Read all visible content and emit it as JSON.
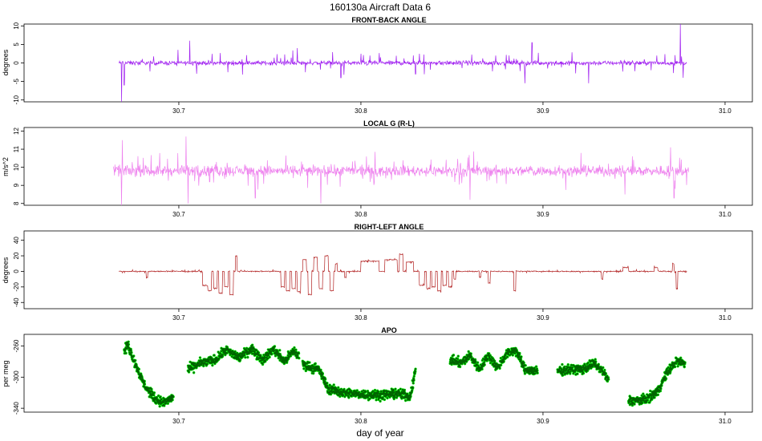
{
  "figure": {
    "title": "160130a   Aircraft Data 6",
    "xlabel": "day of year"
  },
  "colors": {
    "front_back": "#a020f0",
    "local_g": "#ee82ee",
    "right_left": "#b22222",
    "apo_outer": "#00ff00",
    "apo_inner": "#006400"
  },
  "chart_data": [
    {
      "type": "line",
      "title": "FRONT-BACK ANGLE",
      "ylabel": "degrees",
      "xlim": [
        30.615,
        31.015
      ],
      "ylim": [
        -10.5,
        10.5
      ],
      "x_ticks": [
        30.7,
        30.8,
        30.9,
        31.0
      ],
      "x_tick_labels": [
        "30.7",
        "30.8",
        "30.9",
        "31.0"
      ],
      "y_ticks": [
        -10,
        -5,
        0,
        5,
        10
      ],
      "y_tick_labels": [
        "-10",
        "-5",
        "0",
        "5",
        "10"
      ],
      "series": [
        {
          "color": "#a020f0",
          "data_range": [
            30.667,
            30.979
          ],
          "baseline": 0,
          "noise": 0.5,
          "spike_amp": 3,
          "events": [
            {
              "x": 30.6685,
              "value": -10.5
            },
            {
              "x": 30.67,
              "value": -6
            },
            {
              "x": 30.706,
              "value": 6
            },
            {
              "x": 30.727,
              "value": -2.5
            },
            {
              "x": 30.765,
              "value": 4
            },
            {
              "x": 30.789,
              "value": -4
            },
            {
              "x": 30.83,
              "value": -3
            },
            {
              "x": 30.89,
              "value": -5.5
            },
            {
              "x": 30.894,
              "value": 5.5
            },
            {
              "x": 30.918,
              "value": -2.8
            },
            {
              "x": 30.925,
              "value": -5.5
            },
            {
              "x": 30.9755,
              "value": 10.5
            },
            {
              "x": 30.977,
              "value": -4
            }
          ]
        }
      ]
    },
    {
      "type": "line",
      "title": "LOCAL G (R-L)",
      "ylabel": "m/s^2",
      "xlim": [
        30.615,
        31.015
      ],
      "ylim": [
        7.9,
        12.2
      ],
      "x_ticks": [
        30.7,
        30.8,
        30.9,
        31.0
      ],
      "x_tick_labels": [
        "30.7",
        "30.8",
        "30.9",
        "31.0"
      ],
      "y_ticks": [
        8,
        9,
        10,
        11,
        12
      ],
      "y_tick_labels": [
        "8",
        "9",
        "10",
        "11",
        "12"
      ],
      "series": [
        {
          "color": "#ee82ee",
          "data_range": [
            30.664,
            30.98
          ],
          "baseline": 9.8,
          "noise": 0.25,
          "spike_amp": 0.9,
          "events": [
            {
              "x": 30.6685,
              "value": 7.9
            },
            {
              "x": 30.669,
              "value": 11.5
            },
            {
              "x": 30.704,
              "value": 11.7
            },
            {
              "x": 30.705,
              "value": 8.0
            },
            {
              "x": 30.742,
              "value": 8.3
            },
            {
              "x": 30.778,
              "value": 8.0
            },
            {
              "x": 30.86,
              "value": 8.2
            },
            {
              "x": 30.945,
              "value": 8.5
            },
            {
              "x": 30.97,
              "value": 11.1
            },
            {
              "x": 30.972,
              "value": 8.3
            }
          ]
        }
      ]
    },
    {
      "type": "line",
      "title": "RIGHT-LEFT ANGLE",
      "ylabel": "degrees",
      "xlim": [
        30.615,
        31.015
      ],
      "ylim": [
        -48,
        52
      ],
      "x_ticks": [
        30.7,
        30.8,
        30.9,
        31.0
      ],
      "x_tick_labels": [
        "30.7",
        "30.8",
        "30.9",
        "31.0"
      ],
      "y_ticks": [
        -40,
        -20,
        0,
        20,
        40
      ],
      "y_tick_labels": [
        "-40",
        "-20",
        "0",
        "20",
        "40"
      ],
      "series": [
        {
          "color": "#b22222",
          "data_range": [
            30.667,
            30.979
          ],
          "baseline": 0,
          "noise": 0.6,
          "spike_amp": 2,
          "segments": [
            {
              "start": 30.682,
              "end": 30.683,
              "value": -8
            },
            {
              "start": 30.713,
              "end": 30.716,
              "value": -18
            },
            {
              "start": 30.716,
              "end": 30.718,
              "value": -25
            },
            {
              "start": 30.719,
              "end": 30.721,
              "value": -22
            },
            {
              "start": 30.722,
              "end": 30.724,
              "value": -28
            },
            {
              "start": 30.725,
              "end": 30.727,
              "value": -20
            },
            {
              "start": 30.728,
              "end": 30.73,
              "value": -30
            },
            {
              "start": 30.731,
              "end": 30.732,
              "value": 20
            },
            {
              "start": 30.756,
              "end": 30.758,
              "value": -20
            },
            {
              "start": 30.759,
              "end": 30.761,
              "value": -25
            },
            {
              "start": 30.762,
              "end": 30.764,
              "value": -22
            },
            {
              "start": 30.765,
              "end": 30.767,
              "value": -26
            },
            {
              "start": 30.768,
              "end": 30.77,
              "value": 15
            },
            {
              "start": 30.771,
              "end": 30.773,
              "value": -30
            },
            {
              "start": 30.774,
              "end": 30.776,
              "value": 18
            },
            {
              "start": 30.777,
              "end": 30.779,
              "value": -22
            },
            {
              "start": 30.78,
              "end": 30.782,
              "value": 20
            },
            {
              "start": 30.783,
              "end": 30.785,
              "value": -25
            },
            {
              "start": 30.786,
              "end": 30.787,
              "value": 10
            },
            {
              "start": 30.791,
              "end": 30.792,
              "value": -8
            },
            {
              "start": 30.8,
              "end": 30.81,
              "value": 13
            },
            {
              "start": 30.813,
              "end": 30.82,
              "value": 15
            },
            {
              "start": 30.821,
              "end": 30.823,
              "value": 22
            },
            {
              "start": 30.825,
              "end": 30.829,
              "value": 12
            },
            {
              "start": 30.832,
              "end": 30.835,
              "value": -18
            },
            {
              "start": 30.836,
              "end": 30.838,
              "value": -22
            },
            {
              "start": 30.839,
              "end": 30.841,
              "value": -20
            },
            {
              "start": 30.842,
              "end": 30.844,
              "value": -25
            },
            {
              "start": 30.845,
              "end": 30.847,
              "value": -18
            },
            {
              "start": 30.848,
              "end": 30.85,
              "value": -20
            },
            {
              "start": 30.851,
              "end": 30.852,
              "value": -10
            },
            {
              "start": 30.865,
              "end": 30.866,
              "value": -8
            },
            {
              "start": 30.87,
              "end": 30.871,
              "value": -15
            },
            {
              "start": 30.884,
              "end": 30.885,
              "value": -25
            },
            {
              "start": 30.932,
              "end": 30.933,
              "value": -10
            },
            {
              "start": 30.944,
              "end": 30.947,
              "value": 5
            },
            {
              "start": 30.961,
              "end": 30.963,
              "value": 5
            },
            {
              "start": 30.971,
              "end": 30.972,
              "value": 10
            },
            {
              "start": 30.973,
              "end": 30.974,
              "value": -22
            }
          ]
        }
      ]
    },
    {
      "type": "scatter",
      "title": "APO",
      "ylabel": "per meg",
      "xlim": [
        30.615,
        31.015
      ],
      "ylim": [
        -345,
        -245
      ],
      "x_ticks": [
        30.7,
        30.8,
        30.9,
        31.0
      ],
      "x_tick_labels": [
        "30.7",
        "30.8",
        "30.9",
        "31.0"
      ],
      "y_ticks": [
        -340,
        -300,
        -260
      ],
      "y_tick_labels": [
        "-340",
        "-300",
        "-260"
      ],
      "series": [
        {
          "outer_color": "#00ff00",
          "inner_color": "#006400",
          "noise": 5,
          "segments": [
            {
              "x": [
                30.67,
                30.672,
                30.676,
                30.681,
                30.687,
                30.692,
                30.697
              ],
              "y": [
                -268,
                -258,
                -282,
                -310,
                -328,
                -333,
                -325
              ]
            },
            {
              "x": [
                30.705,
                30.712,
                30.72,
                30.726,
                30.733,
                30.74,
                30.746,
                30.752,
                30.758,
                30.763,
                30.766
              ],
              "y": [
                -290,
                -282,
                -278,
                -265,
                -275,
                -263,
                -278,
                -264,
                -280,
                -266,
                -273
              ]
            },
            {
              "x": [
                30.768,
                30.773,
                30.777,
                30.782,
                30.79,
                30.8,
                30.81,
                30.82,
                30.827,
                30.83
              ],
              "y": [
                -283,
                -288,
                -290,
                -315,
                -320,
                -322,
                -323,
                -321,
                -325,
                -292
              ]
            },
            {
              "x": [
                30.849,
                30.855,
                30.86,
                30.865,
                30.87,
                30.875,
                30.88,
                30.885,
                30.89,
                30.897
              ],
              "y": [
                -278,
                -282,
                -272,
                -290,
                -272,
                -288,
                -270,
                -265,
                -290,
                -293
              ]
            },
            {
              "x": [
                30.908,
                30.915,
                30.922,
                30.928,
                30.933,
                30.936
              ],
              "y": [
                -292,
                -290,
                -290,
                -282,
                -293,
                -305
              ]
            },
            {
              "x": [
                30.947,
                30.953,
                30.958,
                30.963,
                30.968,
                30.973,
                30.978
              ],
              "y": [
                -330,
                -330,
                -327,
                -318,
                -295,
                -280,
                -282
              ]
            }
          ]
        }
      ]
    }
  ]
}
